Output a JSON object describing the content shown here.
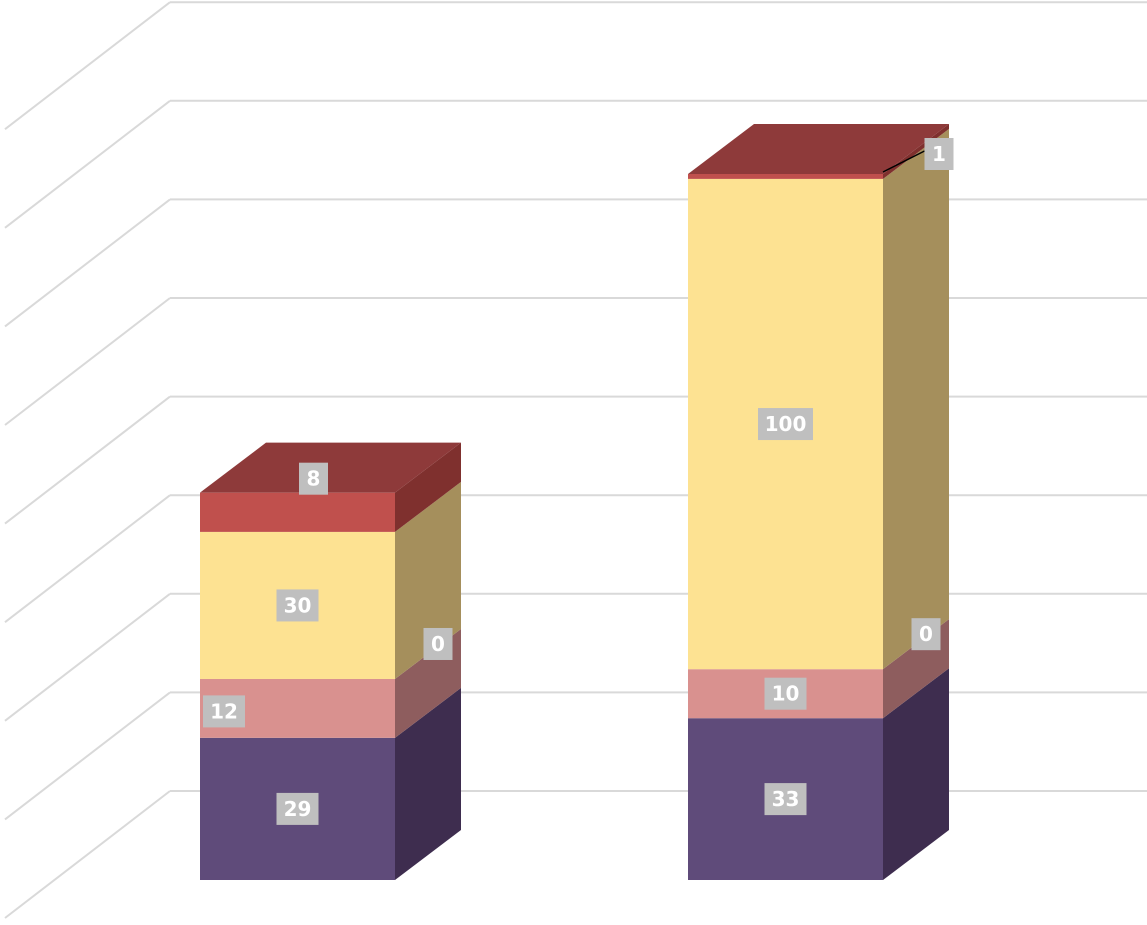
{
  "chart_data": {
    "type": "bar",
    "stacked": true,
    "style": "3d-column",
    "categories": [
      "",
      ""
    ],
    "series": [
      {
        "values": [
          29,
          33
        ],
        "color": "#5f4b7a",
        "side_color": "#3e2d4f",
        "top_color": "#4c3b63"
      },
      {
        "values": [
          12,
          10
        ],
        "color": "#d9918f",
        "side_color": "#8e5d5e",
        "top_color": "#b07575"
      },
      {
        "values": [
          0,
          0
        ],
        "color": "#a96565",
        "side_color": "#8e5d5e",
        "top_color": "#8e5d5e"
      },
      {
        "values": [
          30,
          100
        ],
        "color": "#fde292",
        "side_color": "#a58f5c",
        "top_color": "#d7bf75"
      },
      {
        "values": [
          8,
          1
        ],
        "color": "#c0504d",
        "side_color": "#7f302e",
        "top_color": "#8e3a3a"
      }
    ],
    "ylim": [
      0,
      180
    ],
    "grid": true,
    "legend": "none",
    "label_bg_color": "#bfbfbf",
    "label_text_color": "#ffffff",
    "grid_color": "#d9d9d9"
  }
}
